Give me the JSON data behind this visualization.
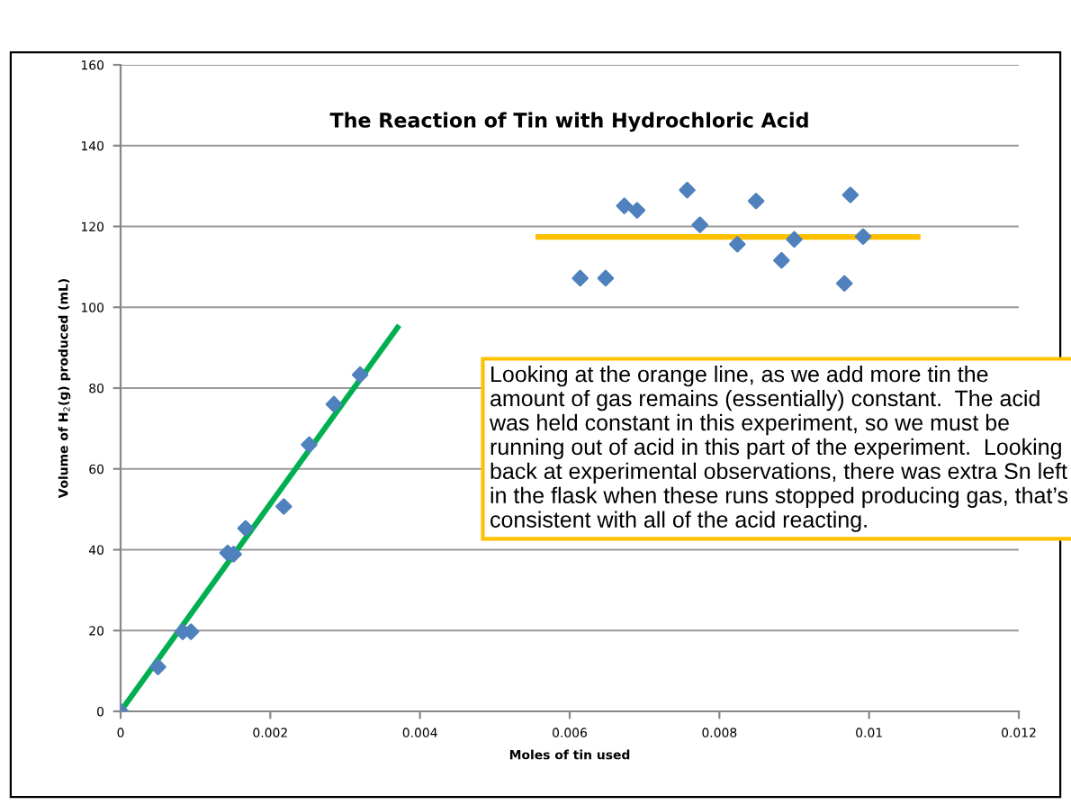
{
  "chart_data": {
    "type": "scatter",
    "title": "The Reaction of Tin with Hydrochloric Acid",
    "xlabel": "Moles of tin used",
    "ylabel": "Volume of H$_{2}$(g) produced (mL)",
    "xlim": [
      0,
      0.012
    ],
    "xticks": [
      0,
      {
        "value": 0.002,
        "label": "0.002"
      },
      {
        "value": 0.004,
        "label": "0.004"
      },
      {
        "value": 0.006,
        "label": "0.006"
      },
      {
        "value": 0.008,
        "label": "0.008"
      },
      {
        "value": 0.01,
        "label": "0.01"
      },
      {
        "value": 0.012,
        "label": "0.012"
      }
    ],
    "ylim": [
      0,
      160
    ],
    "yticks": [
      0,
      20,
      40,
      60,
      80,
      100,
      120,
      140,
      160
    ],
    "grid": "y",
    "marker": "diamond",
    "series": [
      {
        "color": "#4f81bd",
        "x": [
          0,
          0.0005,
          0.00083,
          0.00094,
          0.00143,
          0.00151,
          0.00167,
          0.00218,
          0.00252,
          0.00285,
          0.0032,
          0.00614,
          0.00648,
          0.00673,
          0.0069,
          0.00757,
          0.00774,
          0.00824,
          0.00849,
          0.00883,
          0.009,
          0.00967,
          0.00975,
          0.00992
        ],
        "values": [
          0,
          11,
          19.7,
          19.7,
          39.2,
          38.9,
          45.3,
          50.7,
          66,
          76,
          83.3,
          107.2,
          107.2,
          125.1,
          124,
          129,
          120.4,
          115.6,
          126.3,
          111.6,
          116.8,
          105.9,
          127.8,
          117.5
        ]
      },
      {
        "type": "line",
        "color": "#00b050",
        "marker": "none",
        "x": [
          0,
          0.0037
        ],
        "values": [
          0,
          95
        ]
      },
      {
        "type": "line",
        "color": "#ffc000",
        "marker": "none",
        "x": [
          0.00558,
          0.01065
        ],
        "values": [
          117.4,
          117.4
        ]
      }
    ],
    "annotations": [
      "Looking at the orange line, as we add more tin the amount of gas remains (essentially) constant.  The acid was held constant in this experiment, so we must be running out of acid in this part of the experiment.  Looking back at experimental observations, there was extra Sn left in the flask when these runs stopped producing gas, that’s consistent with all of the acid reacting."
    ]
  }
}
